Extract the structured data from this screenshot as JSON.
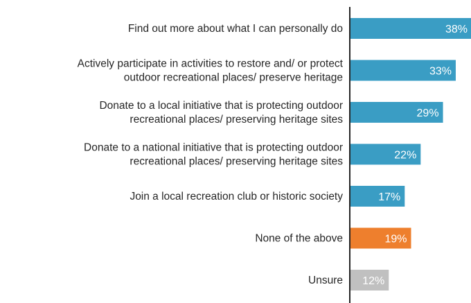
{
  "chart_data": {
    "type": "bar",
    "orientation": "horizontal",
    "categories": [
      [
        "Find out more about what I can personally do"
      ],
      [
        "Actively participate in activities to restore and/ or protect",
        "outdoor recreational places/ preserve heritage"
      ],
      [
        "Donate to a local initiative that is protecting outdoor",
        "recreational places/ preserving heritage sites"
      ],
      [
        "Donate to a national initiative that is protecting outdoor",
        "recreational places/ preserving heritage sites"
      ],
      [
        "Join a local recreation club or historic society"
      ],
      [
        "None of the above"
      ],
      [
        "Unsure"
      ]
    ],
    "values": [
      38,
      33,
      29,
      22,
      17,
      19,
      12
    ],
    "value_labels": [
      "38%",
      "33%",
      "29%",
      "22%",
      "17%",
      "19%",
      "12%"
    ],
    "bar_colors": [
      "#3a9dc4",
      "#3a9dc4",
      "#3a9dc4",
      "#3a9dc4",
      "#3a9dc4",
      "#ee7f2d",
      "#c0c0c0"
    ],
    "axis_color": "#262626",
    "xlim": [
      0,
      38
    ],
    "grid": false,
    "legend": "none",
    "title": "",
    "xlabel": "",
    "ylabel": ""
  }
}
